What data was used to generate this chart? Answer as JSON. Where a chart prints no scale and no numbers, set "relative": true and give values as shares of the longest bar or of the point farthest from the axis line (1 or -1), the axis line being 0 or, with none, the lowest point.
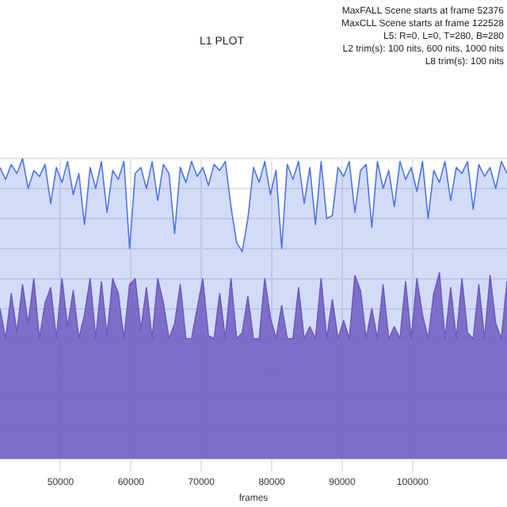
{
  "chart_data": {
    "type": "area",
    "title": "L1 PLOT",
    "xlabel": "frames",
    "relative": true,
    "grid": true,
    "annotations": [
      "MaxFALL Scene starts at frame 52376",
      "MaxCLL Scene starts at frame 122528",
      "L5: R=0, L=0, T=280, B=280",
      "L2 trim(s): 100 nits, 600 nits, 1000 nits",
      "L8 trim(s): 100 nits"
    ],
    "xlim": [
      41400,
      113400
    ],
    "xticks": [
      50000,
      60000,
      70000,
      80000,
      90000,
      100000
    ],
    "x": [
      41400,
      42200,
      43000,
      43800,
      44600,
      45400,
      46200,
      47000,
      47800,
      48600,
      49400,
      50200,
      51000,
      51800,
      52600,
      53400,
      54200,
      55000,
      55800,
      56600,
      57400,
      58200,
      59000,
      59800,
      60600,
      61400,
      62200,
      63000,
      63800,
      64600,
      65400,
      66200,
      67000,
      67800,
      68600,
      69400,
      70200,
      71000,
      71800,
      72600,
      73400,
      74200,
      75000,
      75800,
      76600,
      77400,
      78200,
      79000,
      79800,
      80600,
      81400,
      82200,
      83000,
      83800,
      84600,
      85400,
      86200,
      87000,
      87800,
      88600,
      89400,
      90200,
      91000,
      91800,
      92600,
      93400,
      94200,
      95000,
      95800,
      96600,
      97400,
      98200,
      99000,
      99800,
      100600,
      101400,
      102200,
      103000,
      103800,
      104600,
      105400,
      106200,
      107000,
      107800,
      108600,
      109400,
      110200,
      111000,
      111800,
      112600,
      113400
    ],
    "series": [
      {
        "color": "#4d74e6",
        "values": [
          0.97,
          0.93,
          0.98,
          0.95,
          1,
          0.9,
          0.96,
          0.94,
          0.98,
          0.85,
          0.97,
          0.92,
          0.99,
          0.88,
          0.95,
          0.78,
          0.97,
          0.9,
          0.99,
          0.82,
          0.96,
          0.93,
          0.99,
          0.7,
          0.95,
          0.97,
          0.9,
          0.99,
          0.86,
          0.98,
          0.95,
          0.75,
          0.97,
          0.92,
          0.99,
          0.94,
          0.97,
          0.91,
          0.98,
          0.96,
          0.99,
          0.84,
          0.72,
          0.69,
          0.8,
          0.97,
          0.92,
          0.99,
          0.88,
          0.96,
          0.7,
          0.98,
          0.93,
          0.99,
          0.85,
          0.97,
          0.78,
          0.99,
          0.8,
          0.81,
          0.97,
          0.94,
          0.99,
          0.82,
          0.96,
          0.98,
          0.77,
          0.99,
          0.9,
          0.96,
          0.84,
          0.99,
          0.93,
          0.97,
          0.89,
          0.99,
          0.8,
          0.96,
          0.92,
          0.99,
          0.86,
          0.97,
          0.95,
          0.99,
          0.83,
          0.98,
          0.94,
          0.97,
          0.9,
          0.99,
          0.95
        ]
      },
      {
        "color": "#7b52b0",
        "values": [
          0.5,
          0.4,
          0.55,
          0.42,
          0.58,
          0.45,
          0.6,
          0.4,
          0.52,
          0.57,
          0.4,
          0.6,
          0.44,
          0.56,
          0.4,
          0.48,
          0.6,
          0.4,
          0.59,
          0.41,
          0.6,
          0.55,
          0.4,
          0.58,
          0.6,
          0.43,
          0.57,
          0.4,
          0.6,
          0.52,
          0.4,
          0.45,
          0.58,
          0.4,
          0.4,
          0.5,
          0.6,
          0.41,
          0.4,
          0.55,
          0.4,
          0.6,
          0.4,
          0.42,
          0.54,
          0.4,
          0.4,
          0.6,
          0.47,
          0.4,
          0.51,
          0.4,
          0.4,
          0.57,
          0.4,
          0.44,
          0.4,
          0.6,
          0.4,
          0.53,
          0.4,
          0.46,
          0.4,
          0.61,
          0.56,
          0.4,
          0.5,
          0.4,
          0.58,
          0.4,
          0.44,
          0.4,
          0.59,
          0.4,
          0.6,
          0.48,
          0.4,
          0.55,
          0.62,
          0.4,
          0.57,
          0.4,
          0.6,
          0.42,
          0.4,
          0.58,
          0.4,
          0.61,
          0.45,
          0.4,
          0.59
        ]
      }
    ]
  }
}
